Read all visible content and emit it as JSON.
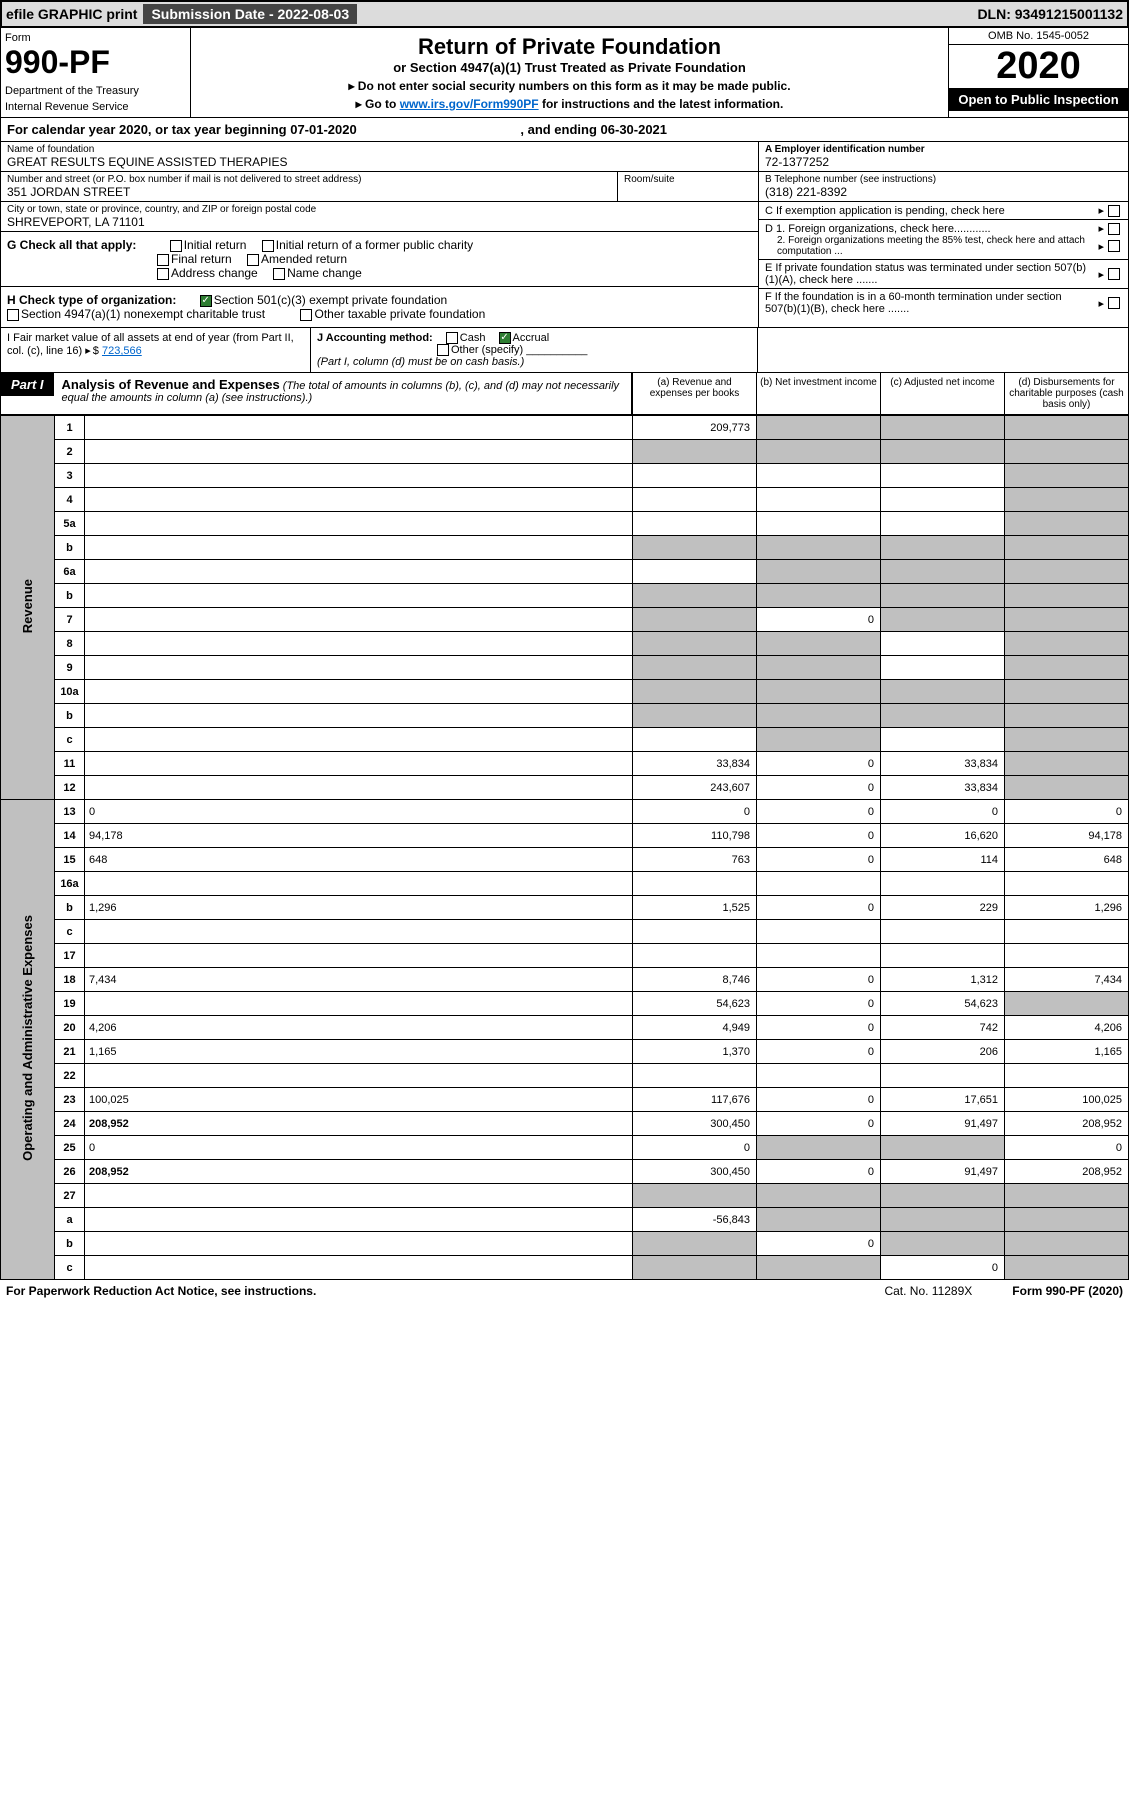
{
  "topbar": {
    "efile": "efile GRAPHIC print",
    "submission_label": "Submission Date - 2022-08-03",
    "dln": "DLN: 93491215001132"
  },
  "header": {
    "form_label": "Form",
    "form_number": "990-PF",
    "dept": "Department of the Treasury",
    "irs": "Internal Revenue Service",
    "title": "Return of Private Foundation",
    "subtitle": "or Section 4947(a)(1) Trust Treated as Private Foundation",
    "note1": "▸ Do not enter social security numbers on this form as it may be made public.",
    "note2_pre": "▸ Go to ",
    "note2_link": "www.irs.gov/Form990PF",
    "note2_post": " for instructions and the latest information.",
    "omb": "OMB No. 1545-0052",
    "year": "2020",
    "open": "Open to Public Inspection"
  },
  "calyear": {
    "text_pre": "For calendar year 2020, or tax year beginning 07-01-2020",
    "text_mid": ", and ending 06-30-2021"
  },
  "info": {
    "name_lbl": "Name of foundation",
    "name": "GREAT RESULTS EQUINE ASSISTED THERAPIES",
    "addr_lbl": "Number and street (or P.O. box number if mail is not delivered to street address)",
    "addr": "351 JORDAN STREET",
    "room_lbl": "Room/suite",
    "city_lbl": "City or town, state or province, country, and ZIP or foreign postal code",
    "city": "SHREVEPORT, LA  71101",
    "a_lbl": "A Employer identification number",
    "a_val": "72-1377252",
    "b_lbl": "B Telephone number (see instructions)",
    "b_val": "(318) 221-8392",
    "c_lbl": "C If exemption application is pending, check here",
    "d1": "D 1. Foreign organizations, check here............",
    "d2": "2. Foreign organizations meeting the 85% test, check here and attach computation ...",
    "e": "E  If private foundation status was terminated under section 507(b)(1)(A), check here .......",
    "f": "F  If the foundation is in a 60-month termination under section 507(b)(1)(B), check here .......",
    "g_lbl": "G Check all that apply:",
    "g_opts": [
      "Initial return",
      "Initial return of a former public charity",
      "Final return",
      "Amended return",
      "Address change",
      "Name change"
    ],
    "h_lbl": "H Check type of organization:",
    "h_opt1": "Section 501(c)(3) exempt private foundation",
    "h_opt2": "Section 4947(a)(1) nonexempt charitable trust",
    "h_opt3": "Other taxable private foundation",
    "i_lbl": "I Fair market value of all assets at end of year (from Part II, col. (c), line 16)",
    "i_val": "723,566",
    "j_lbl": "J Accounting method:",
    "j_cash": "Cash",
    "j_accrual": "Accrual",
    "j_other": "Other (specify)",
    "j_note": "(Part I, column (d) must be on cash basis.)"
  },
  "part1": {
    "label": "Part I",
    "title": "Analysis of Revenue and Expenses",
    "note": "(The total of amounts in columns (b), (c), and (d) may not necessarily equal the amounts in column (a) (see instructions).)",
    "col_a": "(a) Revenue and expenses per books",
    "col_b": "(b) Net investment income",
    "col_c": "(c) Adjusted net income",
    "col_d": "(d) Disbursements for charitable purposes (cash basis only)"
  },
  "sides": {
    "revenue": "Revenue",
    "expenses": "Operating and Administrative Expenses"
  },
  "rows": [
    {
      "n": "1",
      "d": "",
      "a": "209,773",
      "b": "",
      "c": "",
      "gb": true,
      "gc": true,
      "gd": true
    },
    {
      "n": "2",
      "d": "",
      "a": "",
      "b": "",
      "c": "",
      "ga": true,
      "gb": true,
      "gc": true,
      "gd": true,
      "dots": true
    },
    {
      "n": "3",
      "d": "",
      "a": "",
      "b": "",
      "c": "",
      "gd": true
    },
    {
      "n": "4",
      "d": "",
      "a": "",
      "b": "",
      "c": "",
      "gd": true
    },
    {
      "n": "5a",
      "d": "",
      "a": "",
      "b": "",
      "c": "",
      "gd": true
    },
    {
      "n": "b",
      "d": "",
      "a": "",
      "b": "",
      "c": "",
      "ga": true,
      "gb": true,
      "gc": true,
      "gd": true
    },
    {
      "n": "6a",
      "d": "",
      "a": "",
      "b": "",
      "c": "",
      "gb": true,
      "gc": true,
      "gd": true
    },
    {
      "n": "b",
      "d": "",
      "a": "",
      "b": "",
      "c": "",
      "ga": true,
      "gb": true,
      "gc": true,
      "gd": true
    },
    {
      "n": "7",
      "d": "",
      "a": "",
      "b": "0",
      "c": "",
      "ga": true,
      "gc": true,
      "gd": true
    },
    {
      "n": "8",
      "d": "",
      "a": "",
      "b": "",
      "c": "",
      "ga": true,
      "gb": true,
      "gd": true
    },
    {
      "n": "9",
      "d": "",
      "a": "",
      "b": "",
      "c": "",
      "ga": true,
      "gb": true,
      "gd": true
    },
    {
      "n": "10a",
      "d": "",
      "a": "",
      "b": "",
      "c": "",
      "ga": true,
      "gb": true,
      "gc": true,
      "gd": true
    },
    {
      "n": "b",
      "d": "",
      "a": "",
      "b": "",
      "c": "",
      "ga": true,
      "gb": true,
      "gc": true,
      "gd": true
    },
    {
      "n": "c",
      "d": "",
      "a": "",
      "b": "",
      "c": "",
      "gb": true,
      "gd": true
    },
    {
      "n": "11",
      "d": "",
      "a": "33,834",
      "b": "0",
      "c": "33,834",
      "gd": true
    },
    {
      "n": "12",
      "d": "",
      "a": "243,607",
      "b": "0",
      "c": "33,834",
      "bold": true,
      "gd": true
    },
    {
      "n": "13",
      "d": "0",
      "a": "0",
      "b": "0",
      "c": "0"
    },
    {
      "n": "14",
      "d": "94,178",
      "a": "110,798",
      "b": "0",
      "c": "16,620"
    },
    {
      "n": "15",
      "d": "648",
      "a": "763",
      "b": "0",
      "c": "114"
    },
    {
      "n": "16a",
      "d": "",
      "a": "",
      "b": "",
      "c": ""
    },
    {
      "n": "b",
      "d": "1,296",
      "a": "1,525",
      "b": "0",
      "c": "229"
    },
    {
      "n": "c",
      "d": "",
      "a": "",
      "b": "",
      "c": ""
    },
    {
      "n": "17",
      "d": "",
      "a": "",
      "b": "",
      "c": ""
    },
    {
      "n": "18",
      "d": "7,434",
      "a": "8,746",
      "b": "0",
      "c": "1,312"
    },
    {
      "n": "19",
      "d": "",
      "a": "54,623",
      "b": "0",
      "c": "54,623",
      "gd": true
    },
    {
      "n": "20",
      "d": "4,206",
      "a": "4,949",
      "b": "0",
      "c": "742"
    },
    {
      "n": "21",
      "d": "1,165",
      "a": "1,370",
      "b": "0",
      "c": "206"
    },
    {
      "n": "22",
      "d": "",
      "a": "",
      "b": "",
      "c": ""
    },
    {
      "n": "23",
      "d": "100,025",
      "a": "117,676",
      "b": "0",
      "c": "17,651"
    },
    {
      "n": "24",
      "d": "208,952",
      "a": "300,450",
      "b": "0",
      "c": "91,497",
      "bold": true
    },
    {
      "n": "25",
      "d": "0",
      "a": "0",
      "b": "",
      "c": "",
      "gb": true,
      "gc": true
    },
    {
      "n": "26",
      "d": "208,952",
      "a": "300,450",
      "b": "0",
      "c": "91,497",
      "bold": true
    },
    {
      "n": "27",
      "d": "",
      "a": "",
      "b": "",
      "c": "",
      "ga": true,
      "gb": true,
      "gc": true,
      "gd": true
    },
    {
      "n": "a",
      "d": "",
      "a": "-56,843",
      "b": "",
      "c": "",
      "bold": true,
      "gb": true,
      "gc": true,
      "gd": true
    },
    {
      "n": "b",
      "d": "",
      "a": "",
      "b": "0",
      "c": "",
      "bold": true,
      "ga": true,
      "gc": true,
      "gd": true
    },
    {
      "n": "c",
      "d": "",
      "a": "",
      "b": "",
      "c": "0",
      "bold": true,
      "ga": true,
      "gb": true,
      "gd": true
    }
  ],
  "footer": {
    "left": "For Paperwork Reduction Act Notice, see instructions.",
    "mid": "Cat. No. 11289X",
    "right": "Form 990-PF (2020)"
  }
}
